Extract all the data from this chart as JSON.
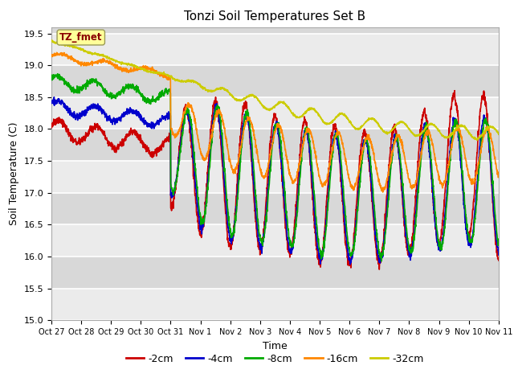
{
  "title": "Tonzi Soil Temperatures Set B",
  "xlabel": "Time",
  "ylabel": "Soil Temperature (C)",
  "ylim": [
    15.0,
    19.6
  ],
  "annotation_label": "TZ_fmet",
  "annotation_color": "#8B0000",
  "annotation_bg": "#FFFF99",
  "legend_labels": [
    "-2cm",
    "-4cm",
    "-8cm",
    "-16cm",
    "-32cm"
  ],
  "legend_colors": [
    "#CC0000",
    "#0000CC",
    "#00AA00",
    "#FF8800",
    "#CCCC00"
  ],
  "bg_color": "#FFFFFF",
  "plot_bg_dark": "#D8D8D8",
  "plot_bg_light": "#EBEBEB",
  "tick_labels": [
    "Oct 27",
    "Oct 28",
    "Oct 29",
    "Oct 30",
    "Oct 31",
    "Nov 1",
    "Nov 2",
    "Nov 3",
    "Nov 4",
    "Nov 5",
    "Nov 6",
    "Nov 7",
    "Nov 8",
    "Nov 9",
    "Nov 10",
    "Nov 11"
  ],
  "ytick_vals": [
    15.0,
    15.5,
    16.0,
    16.5,
    17.0,
    17.5,
    18.0,
    18.5,
    19.0,
    19.5
  ],
  "lw": 1.2
}
